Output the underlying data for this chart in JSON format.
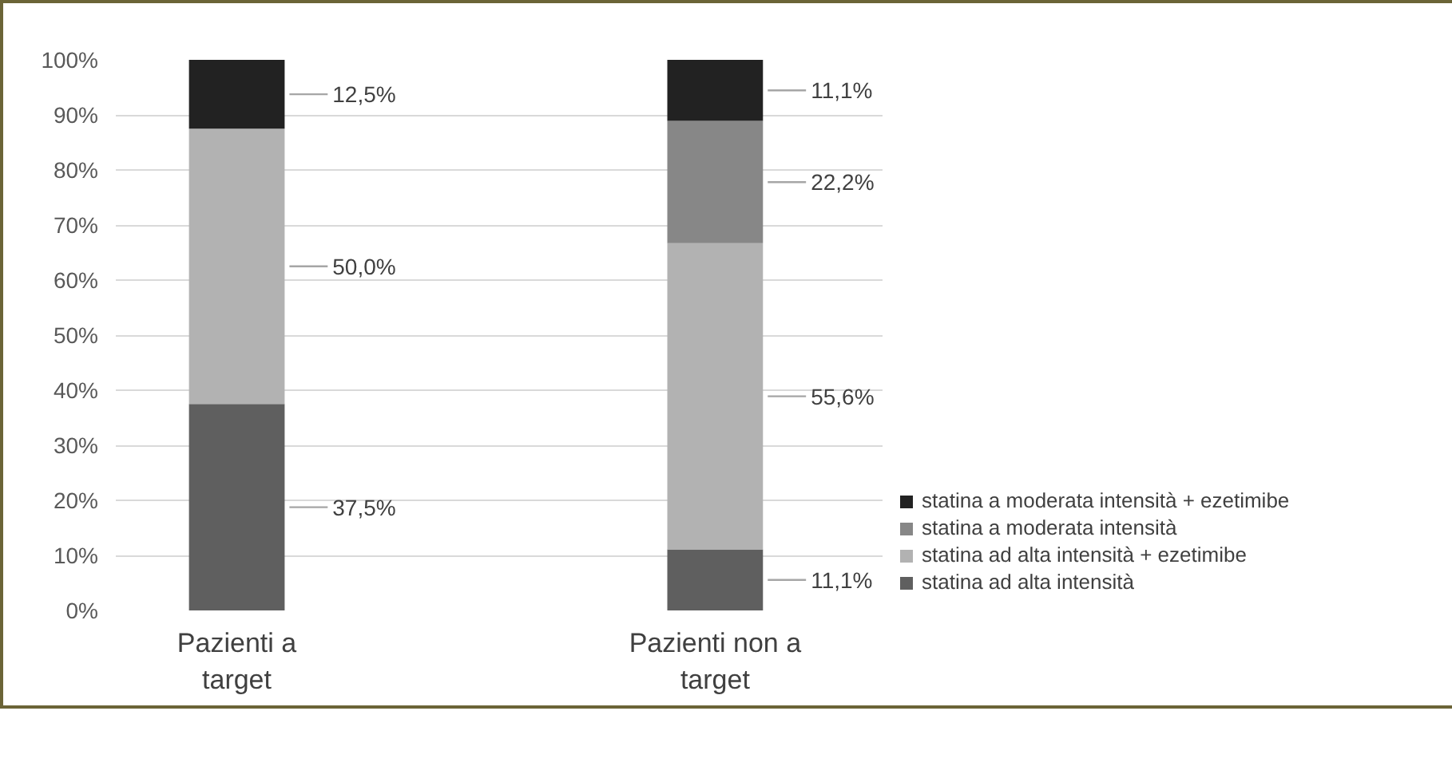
{
  "chart_data": {
    "type": "bar",
    "stacked": true,
    "categories": [
      "Pazienti a target",
      "Pazienti non a target"
    ],
    "series": [
      {
        "name": "statina ad alta intensità",
        "color": "#5f5f5f",
        "values": [
          37.5,
          11.1
        ],
        "value_labels": [
          "37,5%",
          "11,1%"
        ]
      },
      {
        "name": "statina ad alta intensità + ezetimibe",
        "color": "#b2b2b2",
        "values": [
          50.0,
          55.6
        ],
        "value_labels": [
          "50,0%",
          "55,6%"
        ]
      },
      {
        "name": "statina a moderata intensità",
        "color": "#878787",
        "values": [
          null,
          22.2
        ],
        "value_labels": [
          null,
          "22,2%"
        ]
      },
      {
        "name": "statina a moderata intensità + ezetimibe",
        "color": "#222222",
        "values": [
          12.5,
          11.1
        ],
        "value_labels": [
          "12,5%",
          "11,1%"
        ]
      }
    ],
    "ylim": [
      0,
      100
    ],
    "yticks": [
      {
        "value": 0,
        "label": "0%"
      },
      {
        "value": 10,
        "label": "10%"
      },
      {
        "value": 20,
        "label": "20%"
      },
      {
        "value": 30,
        "label": "30%"
      },
      {
        "value": 40,
        "label": "40%"
      },
      {
        "value": 50,
        "label": "50%"
      },
      {
        "value": 60,
        "label": "60%"
      },
      {
        "value": 70,
        "label": "70%"
      },
      {
        "value": 80,
        "label": "80%"
      },
      {
        "value": 90,
        "label": "90%"
      },
      {
        "value": 100,
        "label": "100%"
      }
    ],
    "grid": "y",
    "legend": "bottom right"
  }
}
